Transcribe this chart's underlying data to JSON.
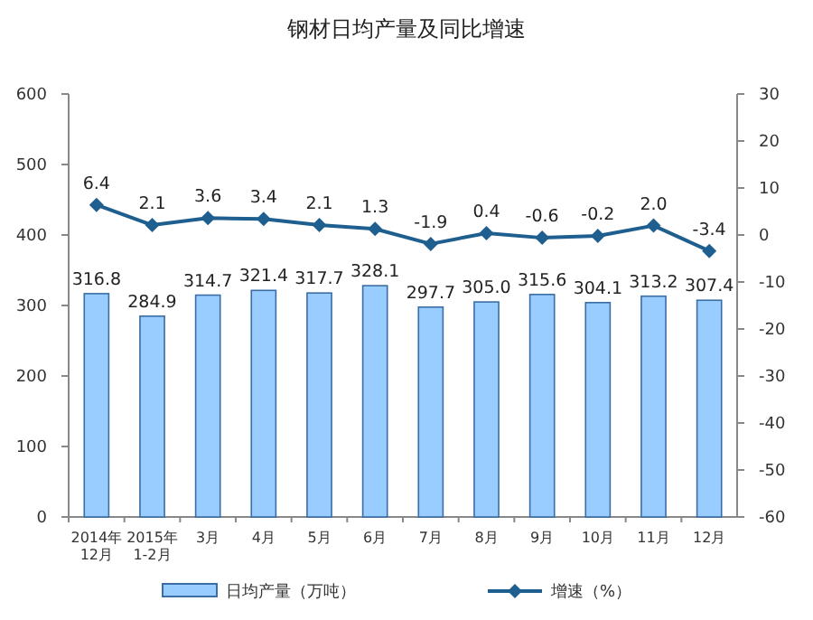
{
  "chart_data": {
    "type": "bar",
    "title": "钢材日均产量及同比增速",
    "categories": [
      "2014年\n12月",
      "2015年\n1-2月",
      "3月",
      "4月",
      "5月",
      "6月",
      "7月",
      "8月",
      "9月",
      "10月",
      "11月",
      "12月"
    ],
    "series": [
      {
        "name": "日均产量（万吨）",
        "color": "#99ccff",
        "values": [
          316.8,
          284.9,
          314.7,
          321.4,
          317.7,
          328.1,
          297.7,
          305.0,
          315.6,
          304.1,
          313.2,
          307.4
        ],
        "value_labels": [
          "316.8",
          "284.9",
          "314.7",
          "321.4",
          "317.7",
          "328.1",
          "297.7",
          "305.0",
          "315.6",
          "304.1",
          "313.2",
          "307.4"
        ]
      },
      {
        "name": "增速（%）",
        "type": "line",
        "axis": "y2",
        "color": "#1f5f8f",
        "marker": "diamond",
        "values": [
          6.4,
          2.1,
          3.6,
          3.4,
          2.1,
          1.3,
          -1.9,
          0.4,
          -0.6,
          -0.2,
          2.0,
          -3.4
        ],
        "value_labels": [
          "6.4",
          "2.1",
          "3.6",
          "3.4",
          "2.1",
          "1.3",
          "-1.9",
          "0.4",
          "-0.6",
          "-0.2",
          "2.0",
          "-3.4"
        ]
      }
    ],
    "ylim": [
      0,
      600
    ],
    "yticks": [
      0,
      100,
      200,
      300,
      400,
      500,
      600
    ],
    "y2lim": [
      -60,
      30
    ],
    "y2ticks": [
      -60,
      -50,
      -40,
      -30,
      -20,
      -10,
      0,
      10,
      20,
      30
    ],
    "legend": "bottom",
    "grid": false
  }
}
